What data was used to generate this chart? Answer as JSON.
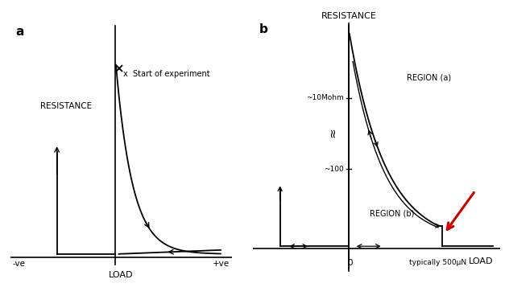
{
  "fig_width": 6.27,
  "fig_height": 3.83,
  "bg_color": "#f5f5f5",
  "panel_a": {
    "label": "a",
    "ylabel": "RESISTANCE",
    "xlabel": "LOAD",
    "xmin_label": "-ve",
    "xmax_label": "+ve",
    "start_text": "x  Start of experiment"
  },
  "panel_b": {
    "label": "b",
    "ylabel": "RESISTANCE",
    "xlabel": "LOAD",
    "x0_label": "0",
    "x_typical_label": "typically 500μN",
    "label_10Mohm": "~10Mohm",
    "label_100": "~100",
    "region_a": "REGION (a)",
    "region_b": "REGION (b)",
    "arrow_color": "#cc0000"
  }
}
